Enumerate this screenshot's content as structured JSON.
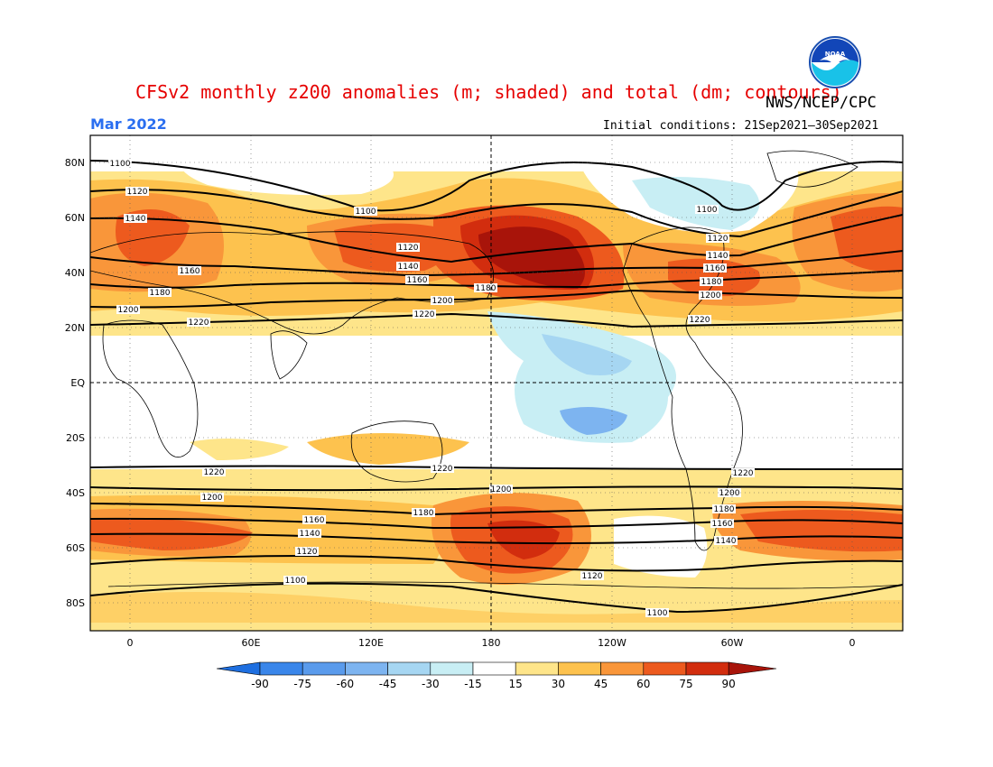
{
  "title": "CFSv2 monthly z200 anomalies (m; shaded) and total (dm; contours)",
  "agency": "NWS/NCEP/CPC",
  "month": "Mar 2022",
  "initial_conditions": "Initial conditions: 21Sep2021—30Sep2021",
  "logo_text": "NOAA",
  "lat_labels": [
    "80N",
    "60N",
    "40N",
    "20N",
    "EQ",
    "20S",
    "40S",
    "60S",
    "80S"
  ],
  "lon_labels": [
    "0",
    "60E",
    "120E",
    "180",
    "120W",
    "60W",
    "0"
  ],
  "colorbar": {
    "levels": [
      "-90",
      "-75",
      "-60",
      "-45",
      "-30",
      "-15",
      "15",
      "30",
      "45",
      "60",
      "75",
      "90"
    ],
    "colors": [
      "#1e6fe0",
      "#3a86ea",
      "#5a9bec",
      "#7db4f0",
      "#a6d6f2",
      "#c8eef4",
      "#ffffff",
      "#fee58a",
      "#fdc24e",
      "#f9963a",
      "#ed5a1e",
      "#d22d0e",
      "#a8140a"
    ]
  },
  "contours": {
    "north": [
      {
        "label": "1100"
      },
      {
        "label": "1120"
      },
      {
        "label": "1140"
      },
      {
        "label": "1160"
      },
      {
        "label": "1180"
      },
      {
        "label": "1200"
      },
      {
        "label": "1220"
      }
    ],
    "south": [
      {
        "label": "1220"
      },
      {
        "label": "1200"
      },
      {
        "label": "1180"
      },
      {
        "label": "1160"
      },
      {
        "label": "1140"
      },
      {
        "label": "1120"
      },
      {
        "label": "1100"
      }
    ]
  }
}
